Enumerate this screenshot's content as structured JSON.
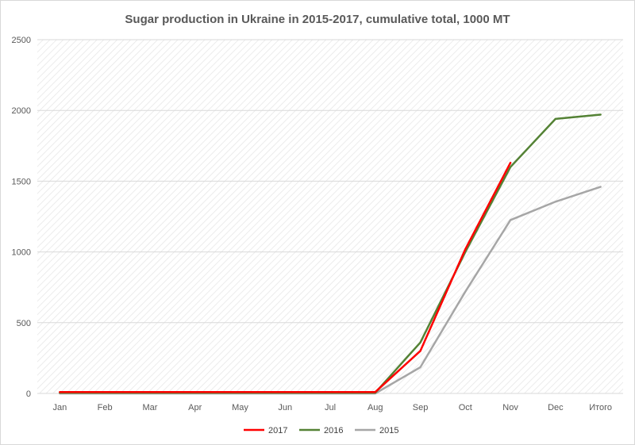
{
  "chart_data": {
    "type": "line",
    "title": "Sugar production in Ukraine in 2015-2017, cumulative total, 1000 MT",
    "xlabel": "",
    "ylabel": "",
    "categories": [
      "Jan",
      "Feb",
      "Mar",
      "Apr",
      "May",
      "Jun",
      "Jul",
      "Aug",
      "Sep",
      "Oct",
      "Nov",
      "Dec",
      "Итого"
    ],
    "ylim": [
      0,
      2500
    ],
    "yticks": [
      0,
      500,
      1000,
      1500,
      2000,
      2500
    ],
    "grid": true,
    "legend_position": "bottom",
    "series": [
      {
        "name": "2017",
        "color": "#ff0000",
        "values": [
          10,
          10,
          10,
          10,
          10,
          10,
          10,
          10,
          300,
          1020,
          1630,
          null,
          null
        ]
      },
      {
        "name": "2016",
        "color": "#548235",
        "values": [
          5,
          5,
          5,
          5,
          5,
          5,
          5,
          5,
          360,
          1000,
          1600,
          1940,
          1970
        ]
      },
      {
        "name": "2015",
        "color": "#a6a6a6",
        "values": [
          0,
          0,
          0,
          0,
          0,
          0,
          0,
          0,
          185,
          720,
          1225,
          1355,
          1460
        ]
      }
    ]
  }
}
